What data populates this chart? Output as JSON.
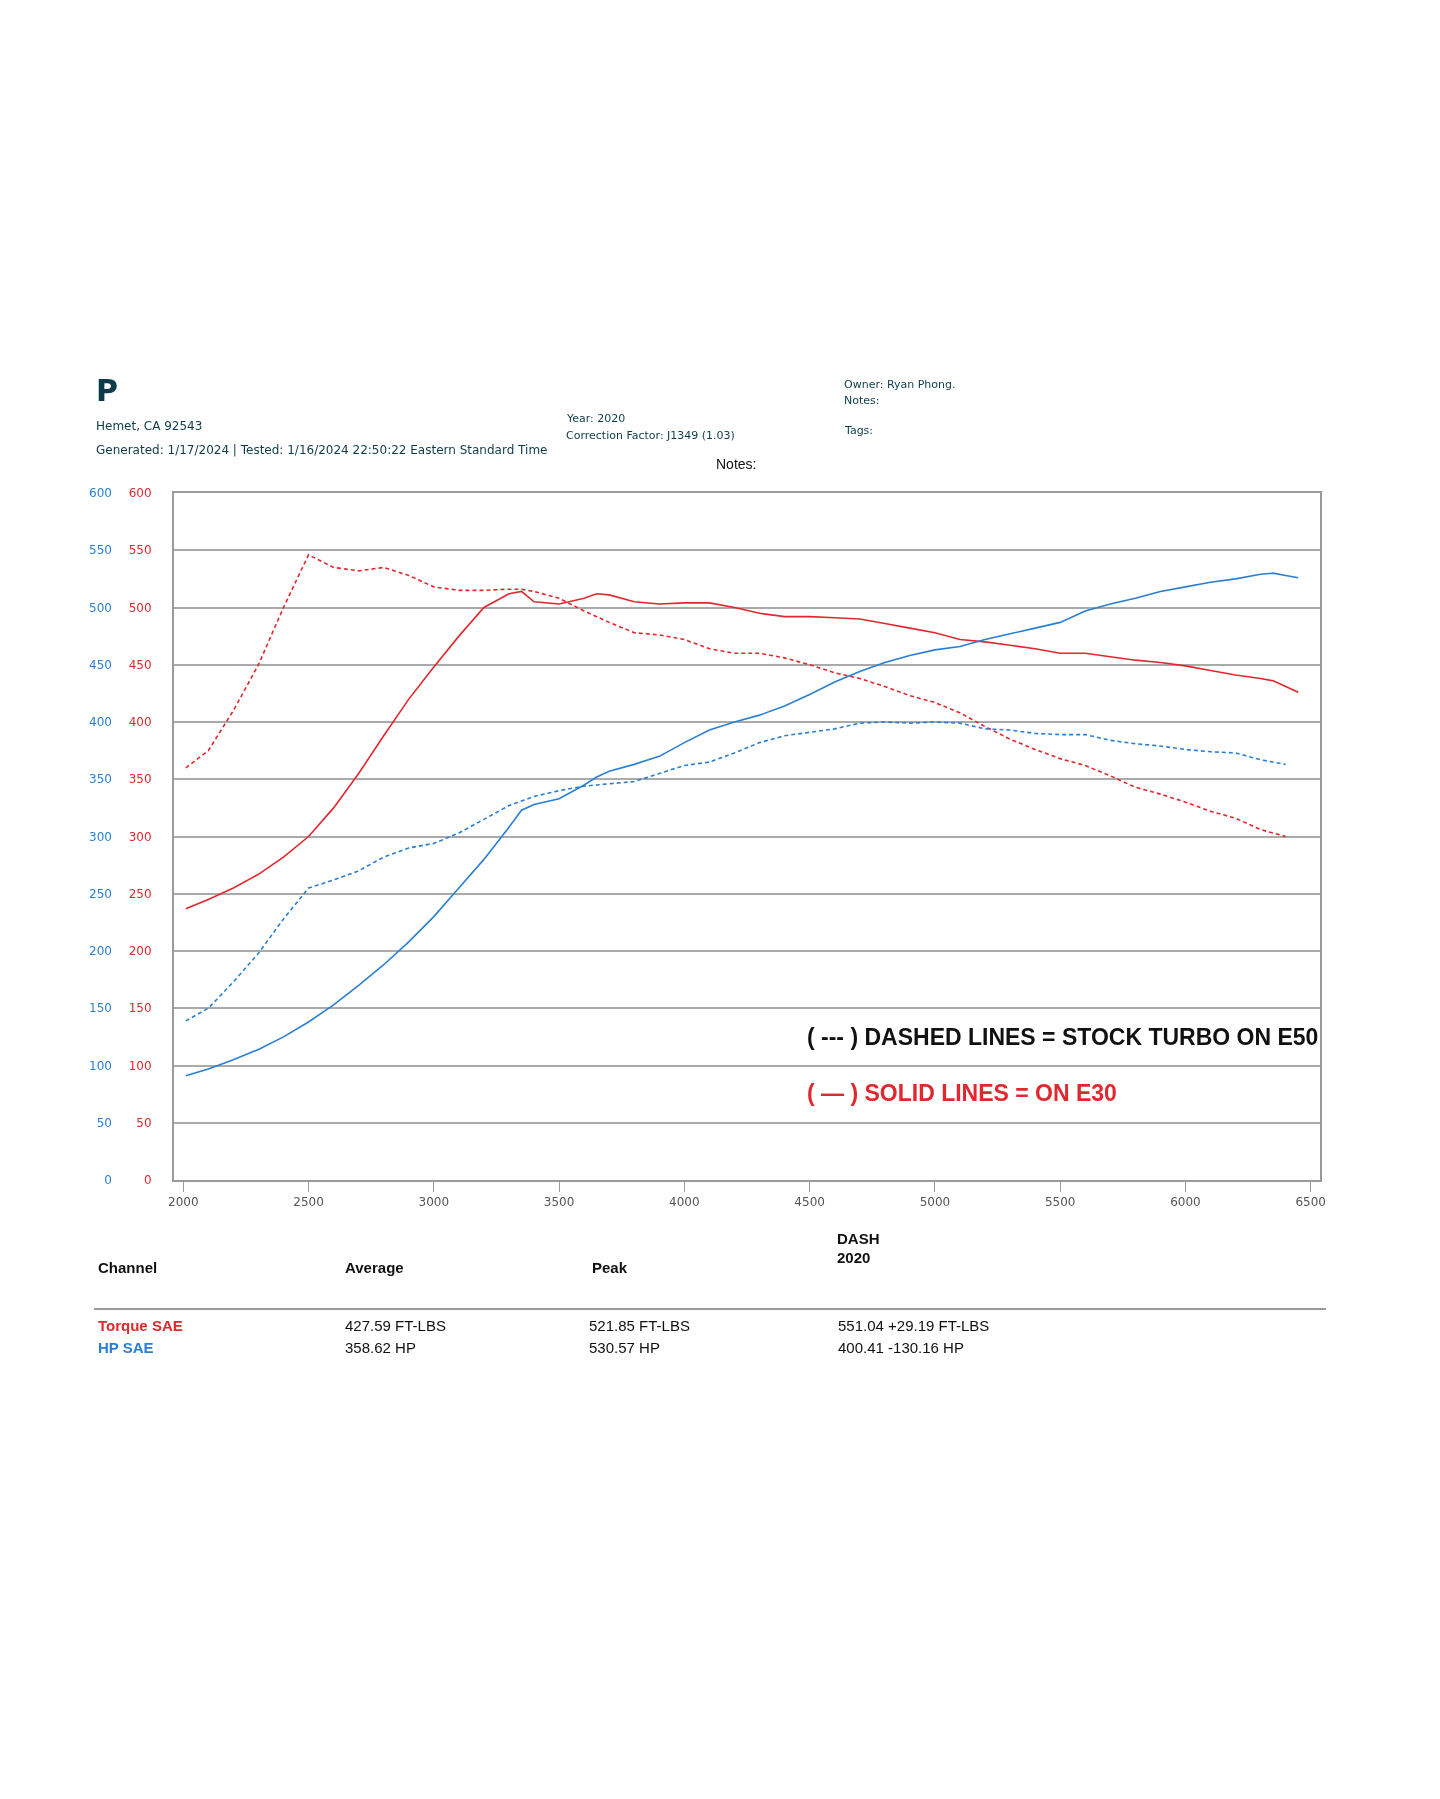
{
  "chart_data": {
    "type": "line",
    "x": [
      2010,
      2100,
      2200,
      2300,
      2400,
      2500,
      2600,
      2700,
      2800,
      2900,
      3000,
      3100,
      3200,
      3300,
      3350,
      3400,
      3500,
      3600,
      3650,
      3700,
      3800,
      3900,
      4000,
      4100,
      4200,
      4300,
      4400,
      4500,
      4600,
      4700,
      4800,
      4900,
      5000,
      5100,
      5200,
      5300,
      5400,
      5500,
      5600,
      5700,
      5800,
      5900,
      6000,
      6100,
      6200,
      6300,
      6350,
      6400,
      6450
    ],
    "series": [
      {
        "color": "#e0282e",
        "line_style": "solid",
        "axis": "y",
        "values": [
          237,
          245,
          255,
          267,
          282,
          300,
          325,
          355,
          388,
          420,
          448,
          475,
          500,
          512,
          514,
          505,
          503,
          508,
          512,
          511,
          505,
          503,
          504,
          504,
          500,
          495,
          492,
          492,
          491,
          490,
          486,
          482,
          478,
          472,
          470,
          467,
          464,
          460,
          460,
          457,
          454,
          452,
          449,
          445,
          441,
          438,
          436,
          431,
          426
        ]
      },
      {
        "color": "#2a7fd4",
        "line_style": "solid",
        "axis": "y2",
        "values": [
          91,
          97,
          105,
          114,
          125,
          138,
          153,
          170,
          188,
          208,
          230,
          255,
          280,
          308,
          323,
          328,
          333,
          345,
          352,
          357,
          363,
          370,
          382,
          393,
          400,
          406,
          414,
          424,
          435,
          444,
          452,
          458,
          463,
          466,
          472,
          477,
          482,
          487,
          497,
          503,
          508,
          514,
          518,
          522,
          525,
          529,
          530,
          528,
          526
        ]
      },
      {
        "color": "#e0282e",
        "line_style": "dashed",
        "axis": "y",
        "values": [
          360,
          375,
          410,
          450,
          500,
          546,
          535,
          532,
          535,
          528,
          518,
          515,
          515,
          516,
          516,
          514,
          508,
          497,
          492,
          487,
          478,
          476,
          472,
          464,
          460,
          460,
          456,
          450,
          443,
          438,
          431,
          423,
          417,
          408,
          396,
          385,
          376,
          368,
          362,
          353,
          343,
          337,
          330,
          322,
          316,
          306,
          303,
          300,
          null
        ]
      },
      {
        "color": "#2a7fd4",
        "line_style": "dashed",
        "axis": "y2",
        "values": [
          139,
          150,
          173,
          198,
          228,
          255,
          262,
          270,
          282,
          290,
          294,
          303,
          315,
          327,
          331,
          335,
          340,
          344,
          345,
          346,
          348,
          355,
          362,
          365,
          373,
          382,
          388,
          391,
          394,
          399,
          400,
          399,
          400,
          399,
          394,
          393,
          390,
          389,
          389,
          384,
          381,
          379,
          376,
          374,
          373,
          367,
          365,
          363,
          null
        ]
      }
    ],
    "xlim": [
      1963,
      6537
    ],
    "xticks": [
      2000,
      2500,
      3000,
      3500,
      4000,
      4500,
      5000,
      5500,
      6000,
      6500
    ],
    "ylim": [
      0,
      600
    ],
    "yticks": [
      0,
      50,
      100,
      150,
      200,
      250,
      300,
      350,
      400,
      450,
      500,
      550,
      600
    ],
    "y2lim": [
      0,
      600
    ],
    "y2ticks": [
      0,
      50,
      100,
      150,
      200,
      250,
      300,
      350,
      400,
      450,
      500,
      550,
      600
    ],
    "grid": "y",
    "marker": "none",
    "annotations": [
      "P",
      "Hemet, CA 92543",
      "Generated: 1/17/2024 | Tested: 1/16/2024 22:50:22 Eastern Standard Time",
      "Year: 2020",
      "Correction Factor: J1349 (1.03)",
      "Owner: Ryan Phong.",
      "Notes:",
      "Tags:",
      "Notes:",
      "( --- ) DASHED LINES = STOCK TURBO ON E50",
      "( — ) SOLID LINES = ON E30",
      "Channel",
      "Average",
      "Peak",
      "DASH",
      "2020",
      "Torque SAE",
      "427.59 FT-LBS",
      "521.85 FT-LBS",
      "551.04 +29.19 FT-LBS",
      "HP SAE",
      "358.62 HP",
      "530.57 HP",
      "400.41 -130.16 HP"
    ]
  }
}
